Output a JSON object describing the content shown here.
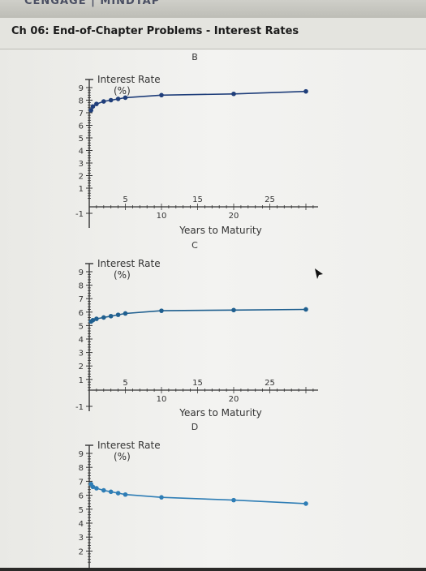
{
  "app": {
    "brand": "CENGAGE | MINDTAP"
  },
  "header": {
    "title": "Ch 06: End-of-Chapter Problems - Interest Rates"
  },
  "colors": {
    "curve_b": "#1f3e7a",
    "curve_c": "#1f5f8f",
    "curve_d": "#2e7db5",
    "axis": "#333333"
  },
  "chart_data": [
    {
      "panel": "B",
      "type": "line",
      "ylabel": "Interest Rate (%)",
      "xlabel": "Years to Maturity",
      "x_ticks": [
        "5",
        "10",
        "15",
        "20",
        "25"
      ],
      "y_ticks": [
        "9",
        "8",
        "7",
        "6",
        "5",
        "4",
        "3",
        "2",
        "1",
        "-1"
      ],
      "x": [
        0.25,
        0.5,
        1,
        2,
        3,
        4,
        5,
        10,
        20,
        30
      ],
      "y": [
        7.2,
        7.5,
        7.7,
        7.9,
        8.0,
        8.1,
        8.2,
        8.4,
        8.5,
        8.7
      ]
    },
    {
      "panel": "C",
      "type": "line",
      "ylabel": "Interest Rate (%)",
      "xlabel": "Years to Maturity",
      "x_ticks": [
        "5",
        "10",
        "15",
        "20",
        "25"
      ],
      "y_ticks": [
        "9",
        "8",
        "7",
        "6",
        "5",
        "4",
        "3",
        "2",
        "1",
        "-1"
      ],
      "x": [
        0.25,
        0.5,
        1,
        2,
        3,
        4,
        5,
        10,
        20,
        30
      ],
      "y": [
        5.3,
        5.4,
        5.5,
        5.6,
        5.7,
        5.8,
        5.9,
        6.1,
        6.15,
        6.2
      ]
    },
    {
      "panel": "D",
      "type": "line",
      "ylabel": "Interest Rate (%)",
      "xlabel": "",
      "x_ticks": [],
      "y_ticks": [
        "9",
        "8",
        "7",
        "6",
        "5",
        "4",
        "3",
        "2"
      ],
      "x": [
        0.25,
        0.5,
        1,
        2,
        3,
        4,
        5,
        10,
        20,
        30
      ],
      "y": [
        6.8,
        6.6,
        6.5,
        6.35,
        6.25,
        6.15,
        6.05,
        5.85,
        5.65,
        5.4
      ]
    }
  ]
}
